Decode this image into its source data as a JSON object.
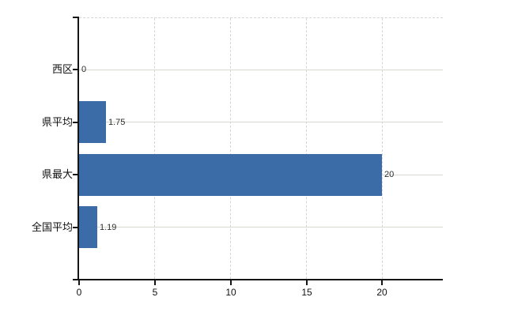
{
  "chart_data": {
    "type": "bar",
    "orientation": "horizontal",
    "title": "",
    "xlabel": "",
    "ylabel": "",
    "categories": [
      "西区",
      "県平均",
      "県最大",
      "全国平均"
    ],
    "values": [
      0,
      1.75,
      20,
      1.19
    ],
    "value_labels": [
      "0",
      "1.75",
      "20",
      "1.19"
    ],
    "x_ticks": [
      0,
      5,
      10,
      15,
      20
    ],
    "x_tick_labels": [
      "0",
      "5",
      "10",
      "15",
      "20"
    ],
    "xlim": [
      0,
      24
    ],
    "bar_height_ratio": 0.8,
    "grid": {
      "vertical": "dashed",
      "horizontal": "solid",
      "top_border": "dashed"
    },
    "legend": "none"
  },
  "colors": {
    "background": "#ffffff",
    "bar": "#3c6ca8",
    "axis": "#151515",
    "grid_horizontal": "#d6dad1",
    "grid_vertical": "#d5d3d8",
    "category_label": "#111111",
    "value_label": "#2e2e2e",
    "tick_label": "#111111"
  }
}
